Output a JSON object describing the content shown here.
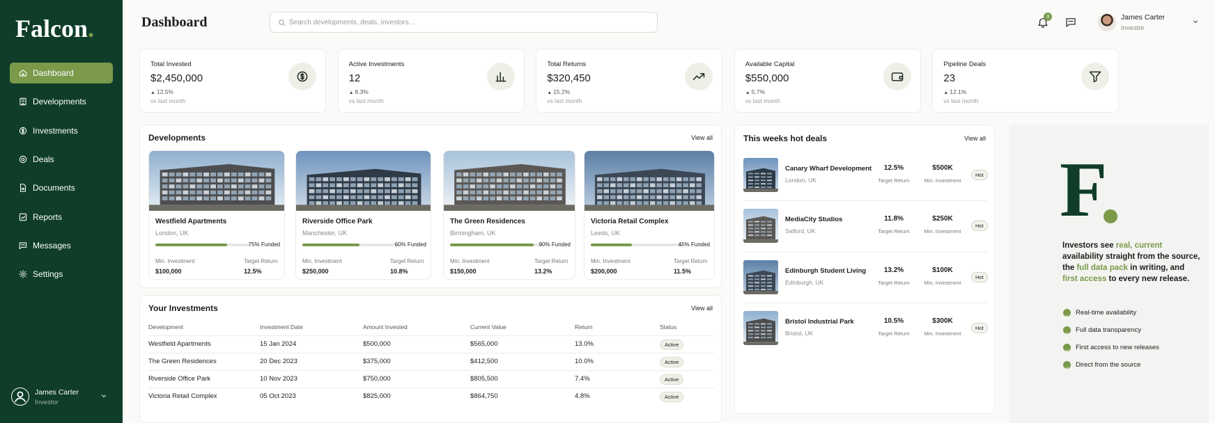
{
  "sidebar": {
    "logo": "Falcon",
    "logo_dot": ".",
    "nav": [
      "Dashboard",
      "Developments",
      "Investments",
      "Deals",
      "Documents",
      "Reports",
      "Messages",
      "Settings"
    ],
    "user": {
      "name": "James Carter",
      "role": "Investor"
    }
  },
  "header": {
    "title": "Dashboard",
    "search_placeholder": "Search developments, deals, investors...",
    "notifications": "3",
    "user": {
      "name": "James Carter",
      "role": "Investor"
    }
  },
  "stats": [
    {
      "label": "Total Invested",
      "value": "$2,450,000",
      "change": "12.5%",
      "note": "vs last month"
    },
    {
      "label": "Active Investments",
      "value": "12",
      "change": "8.3%",
      "note": "vs last month"
    },
    {
      "label": "Total Returns",
      "value": "$320,450",
      "change": "15.2%",
      "note": "vs last month"
    },
    {
      "label": "Available Capital",
      "value": "$550,000",
      "change": "5.7%",
      "note": "vs last month"
    },
    {
      "label": "Pipeline Deals",
      "value": "23",
      "change": "12.1%",
      "note": "vs last month"
    }
  ],
  "developments": {
    "title": "Developments",
    "view_all": "View all",
    "cards": [
      {
        "name": "Westfield Apartments",
        "location": "London, UK",
        "funded": 75,
        "funded_label": "75% Funded",
        "min_label": "Min. Investment",
        "min_value": "$100,000",
        "return_label": "Target Return",
        "return_value": "12.5%"
      },
      {
        "name": "Riverside Office Park",
        "location": "Manchester, UK",
        "funded": 60,
        "funded_label": "60% Funded",
        "min_label": "Min. Investment",
        "min_value": "$250,000",
        "return_label": "Target Return",
        "return_value": "10.8%"
      },
      {
        "name": "The Green Residences",
        "location": "Birmingham, UK",
        "funded": 90,
        "funded_label": "90% Funded",
        "min_label": "Min. Investment",
        "min_value": "$150,000",
        "return_label": "Target Return",
        "return_value": "13.2%"
      },
      {
        "name": "Victoria Retail Complex",
        "location": "Leeds, UK",
        "funded": 45,
        "funded_label": "45% Funded",
        "min_label": "Min. Investment",
        "min_value": "$200,000",
        "return_label": "Target Return",
        "return_value": "11.5%"
      }
    ]
  },
  "investments": {
    "title": "Your Investments",
    "view_all": "View all",
    "columns": [
      "Development",
      "Investment Date",
      "Amount Invested",
      "Current Value",
      "Return",
      "Status"
    ],
    "rows": [
      [
        "Westfield Apartments",
        "15 Jan 2024",
        "$500,000",
        "$565,000",
        "13.0%",
        "Active"
      ],
      [
        "The Green Residences",
        "20 Dec 2023",
        "$375,000",
        "$412,500",
        "10.0%",
        "Active"
      ],
      [
        "Riverside Office Park",
        "10 Nov 2023",
        "$750,000",
        "$805,500",
        "7.4%",
        "Active"
      ],
      [
        "Victoria Retail Complex",
        "05 Oct 2023",
        "$825,000",
        "$864,750",
        "4.8%",
        "Active"
      ]
    ]
  },
  "hot_deals": {
    "title": "This weeks hot deals",
    "view_all": "View all",
    "deals": [
      {
        "name": "Canary Wharf Development",
        "location": "London, UK",
        "return": "12.5%",
        "return_label": "Target Return",
        "min": "$500K",
        "min_label": "Min. Investment",
        "tag": "Hot"
      },
      {
        "name": "MediaCity Studios",
        "location": "Salford, UK",
        "return": "11.8%",
        "return_label": "Target Return",
        "min": "$250K",
        "min_label": "Min. Investment",
        "tag": "Hot"
      },
      {
        "name": "Edinburgh Student Living",
        "location": "Edinburgh, UK",
        "return": "13.2%",
        "return_label": "Target Return",
        "min": "$100K",
        "min_label": "Min. Investment",
        "tag": "Hot"
      },
      {
        "name": "Bristol Industrial Park",
        "location": "Bristol, UK",
        "return": "10.5%",
        "return_label": "Target Return",
        "min": "$300K",
        "min_label": "Min. Investment",
        "tag": "Hot"
      }
    ]
  },
  "promo": {
    "logo": "F",
    "text": [
      {
        "text": "Investors see ",
        "highlight": false
      },
      {
        "text": "real, current",
        "highlight": true
      },
      {
        "text": " availability straight from the source, the ",
        "highlight": false
      },
      {
        "text": "full data pack",
        "highlight": true
      },
      {
        "text": " in writing, and ",
        "highlight": false
      },
      {
        "text": "first access",
        "highlight": true
      },
      {
        "text": " to every new release.",
        "highlight": false
      }
    ],
    "features": [
      "Real-time availability",
      "Full data transparency",
      "First access to new releases",
      "Direct from the source"
    ]
  }
}
